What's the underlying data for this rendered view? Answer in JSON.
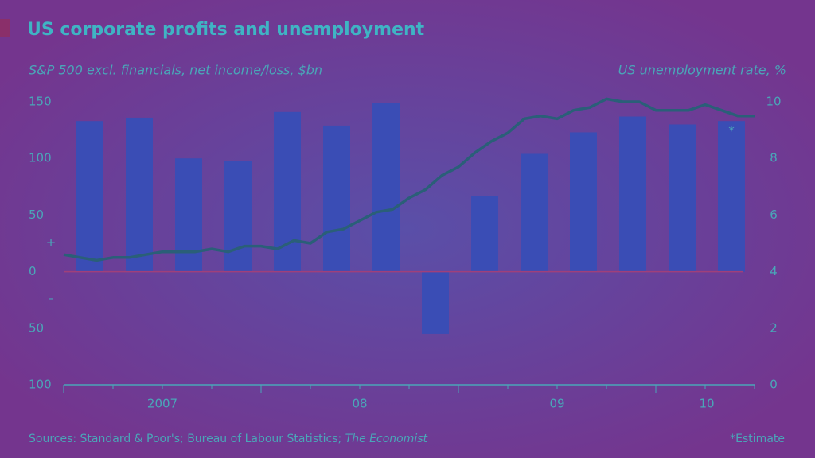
{
  "chart_data": {
    "type": "bar-line",
    "title": "US corporate profits and unemployment",
    "y_axis_title": "S&P 500 excl. financials, net income/loss, $bn",
    "y2_axis_title": "US unemployment rate, %",
    "source": "Sources: Standard & Poor's; Bureau of Labour Statistics; ",
    "source_italic": "The Economist",
    "footnote": "*Estimate",
    "estimate_marker": "*",
    "sign_labels": [
      "+",
      "–"
    ],
    "x_labels": [
      "2007",
      "08",
      "09",
      "10"
    ],
    "categories": [
      null,
      null,
      null,
      null,
      null,
      null,
      null,
      null,
      null,
      null,
      null,
      null,
      null,
      null
    ],
    "bars": {
      "color": "#3a4db5",
      "values": [
        133,
        136,
        100,
        98,
        141,
        129,
        149,
        -55,
        67,
        104,
        123,
        137,
        130,
        133
      ]
    },
    "line": {
      "color": "#2a5f78",
      "axis": "y2",
      "values": [
        4.6,
        4.5,
        4.4,
        4.5,
        4.5,
        4.6,
        4.7,
        4.7,
        4.7,
        4.8,
        4.7,
        4.9,
        4.9,
        4.8,
        5.1,
        5.0,
        5.4,
        5.5,
        5.8,
        6.1,
        6.2,
        6.6,
        6.9,
        7.4,
        7.7,
        8.2,
        8.6,
        8.9,
        9.4,
        9.5,
        9.4,
        9.7,
        9.8,
        10.1,
        10.0,
        10.0,
        9.7,
        9.7,
        9.7,
        9.9,
        9.7,
        9.5,
        9.5
      ]
    },
    "ylim": [
      -100,
      150
    ],
    "yticks": [
      150,
      100,
      50,
      0,
      {
        "value": -50,
        "label": "50"
      },
      {
        "value": -100,
        "label": "100"
      }
    ],
    "y2lim": [
      0,
      10
    ],
    "y2ticks": [
      10,
      8,
      6,
      4,
      2,
      0
    ]
  }
}
